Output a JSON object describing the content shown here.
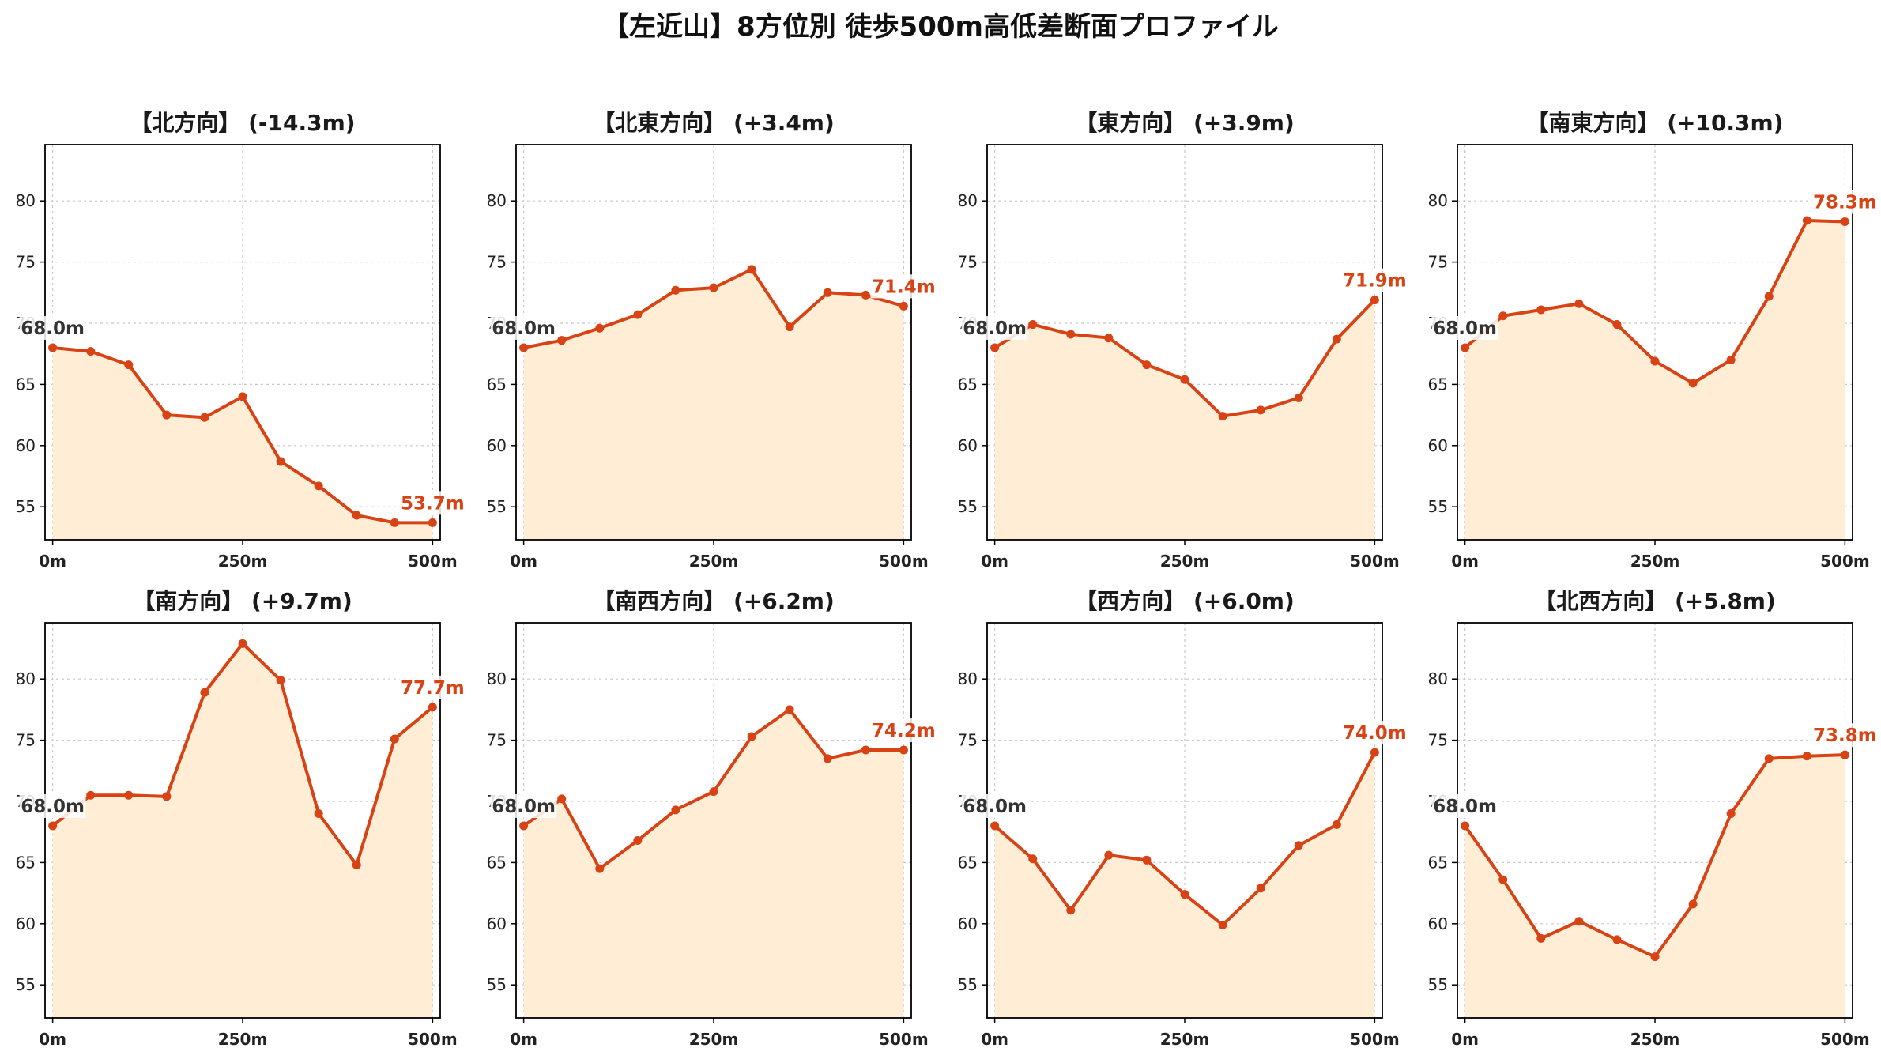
{
  "suptitle": "【左近山】8方位別 徒歩500m高低差断面プロファイル",
  "colors": {
    "line": "#d84315",
    "fill": "#ffedd5",
    "start_label": "#333333",
    "end_label": "#d84315",
    "grid": "#c8c8c8"
  },
  "chart_data": [
    {
      "type": "area",
      "title": "【北方向】 (-14.3m)",
      "x": [
        0,
        50,
        100,
        150,
        200,
        250,
        300,
        350,
        400,
        450,
        500
      ],
      "values": [
        68.0,
        67.7,
        66.6,
        62.5,
        62.3,
        64.0,
        58.7,
        56.7,
        54.3,
        53.7,
        53.7
      ],
      "start_label": "68.0m",
      "end_label": "53.7m",
      "xticks": [
        "0m",
        "250m",
        "500m"
      ],
      "yticks": [
        55,
        60,
        65,
        70,
        75,
        80
      ],
      "ylim": [
        52.3,
        84.6
      ],
      "xlim": [
        -10,
        510
      ],
      "grid": true
    },
    {
      "type": "area",
      "title": "【北東方向】 (+3.4m)",
      "x": [
        0,
        50,
        100,
        150,
        200,
        250,
        300,
        350,
        400,
        450,
        500
      ],
      "values": [
        68.0,
        68.6,
        69.6,
        70.7,
        72.7,
        72.9,
        74.4,
        69.7,
        72.5,
        72.3,
        71.4
      ],
      "start_label": "68.0m",
      "end_label": "71.4m",
      "xticks": [
        "0m",
        "250m",
        "500m"
      ],
      "yticks": [
        55,
        60,
        65,
        70,
        75,
        80
      ],
      "ylim": [
        52.3,
        84.6
      ],
      "xlim": [
        -10,
        510
      ],
      "grid": true
    },
    {
      "type": "area",
      "title": "【東方向】 (+3.9m)",
      "x": [
        0,
        50,
        100,
        150,
        200,
        250,
        300,
        350,
        400,
        450,
        500
      ],
      "values": [
        68.0,
        69.9,
        69.1,
        68.8,
        66.6,
        65.4,
        62.4,
        62.9,
        63.9,
        68.7,
        71.9
      ],
      "start_label": "68.0m",
      "end_label": "71.9m",
      "xticks": [
        "0m",
        "250m",
        "500m"
      ],
      "yticks": [
        55,
        60,
        65,
        70,
        75,
        80
      ],
      "ylim": [
        52.3,
        84.6
      ],
      "xlim": [
        -10,
        510
      ],
      "grid": true
    },
    {
      "type": "area",
      "title": "【南東方向】 (+10.3m)",
      "x": [
        0,
        50,
        100,
        150,
        200,
        250,
        300,
        350,
        400,
        450,
        500
      ],
      "values": [
        68.0,
        70.6,
        71.1,
        71.6,
        69.9,
        66.9,
        65.1,
        67.0,
        72.2,
        78.4,
        78.3
      ],
      "start_label": "68.0m",
      "end_label": "78.3m",
      "xticks": [
        "0m",
        "250m",
        "500m"
      ],
      "yticks": [
        55,
        60,
        65,
        70,
        75,
        80
      ],
      "ylim": [
        52.3,
        84.6
      ],
      "xlim": [
        -10,
        510
      ],
      "grid": true
    },
    {
      "type": "area",
      "title": "【南方向】 (+9.7m)",
      "x": [
        0,
        50,
        100,
        150,
        200,
        250,
        300,
        350,
        400,
        450,
        500
      ],
      "values": [
        68.0,
        70.5,
        70.5,
        70.4,
        78.9,
        82.9,
        79.9,
        69.0,
        64.8,
        75.1,
        77.7
      ],
      "start_label": "68.0m",
      "end_label": "77.7m",
      "xticks": [
        "0m",
        "250m",
        "500m"
      ],
      "yticks": [
        55,
        60,
        65,
        70,
        75,
        80
      ],
      "ylim": [
        52.3,
        84.6
      ],
      "xlim": [
        -10,
        510
      ],
      "grid": true
    },
    {
      "type": "area",
      "title": "【南西方向】 (+6.2m)",
      "x": [
        0,
        50,
        100,
        150,
        200,
        250,
        300,
        350,
        400,
        450,
        500
      ],
      "values": [
        68.0,
        70.2,
        64.5,
        66.8,
        69.3,
        70.8,
        75.3,
        77.5,
        73.5,
        74.2,
        74.2
      ],
      "start_label": "68.0m",
      "end_label": "74.2m",
      "xticks": [
        "0m",
        "250m",
        "500m"
      ],
      "yticks": [
        55,
        60,
        65,
        70,
        75,
        80
      ],
      "ylim": [
        52.3,
        84.6
      ],
      "xlim": [
        -10,
        510
      ],
      "grid": true
    },
    {
      "type": "area",
      "title": "【西方向】 (+6.0m)",
      "x": [
        0,
        50,
        100,
        150,
        200,
        250,
        300,
        350,
        400,
        450,
        500
      ],
      "values": [
        68.0,
        65.3,
        61.1,
        65.6,
        65.2,
        62.4,
        59.9,
        62.9,
        66.4,
        68.1,
        74.0
      ],
      "start_label": "68.0m",
      "end_label": "74.0m",
      "xticks": [
        "0m",
        "250m",
        "500m"
      ],
      "yticks": [
        55,
        60,
        65,
        70,
        75,
        80
      ],
      "ylim": [
        52.3,
        84.6
      ],
      "xlim": [
        -10,
        510
      ],
      "grid": true
    },
    {
      "type": "area",
      "title": "【北西方向】 (+5.8m)",
      "x": [
        0,
        50,
        100,
        150,
        200,
        250,
        300,
        350,
        400,
        450,
        500
      ],
      "values": [
        68.0,
        63.6,
        58.8,
        60.2,
        58.7,
        57.3,
        61.6,
        69.0,
        73.5,
        73.7,
        73.8
      ],
      "start_label": "68.0m",
      "end_label": "73.8m",
      "xticks": [
        "0m",
        "250m",
        "500m"
      ],
      "yticks": [
        55,
        60,
        65,
        70,
        75,
        80
      ],
      "ylim": [
        52.3,
        84.6
      ],
      "xlim": [
        -10,
        510
      ],
      "grid": true
    }
  ]
}
